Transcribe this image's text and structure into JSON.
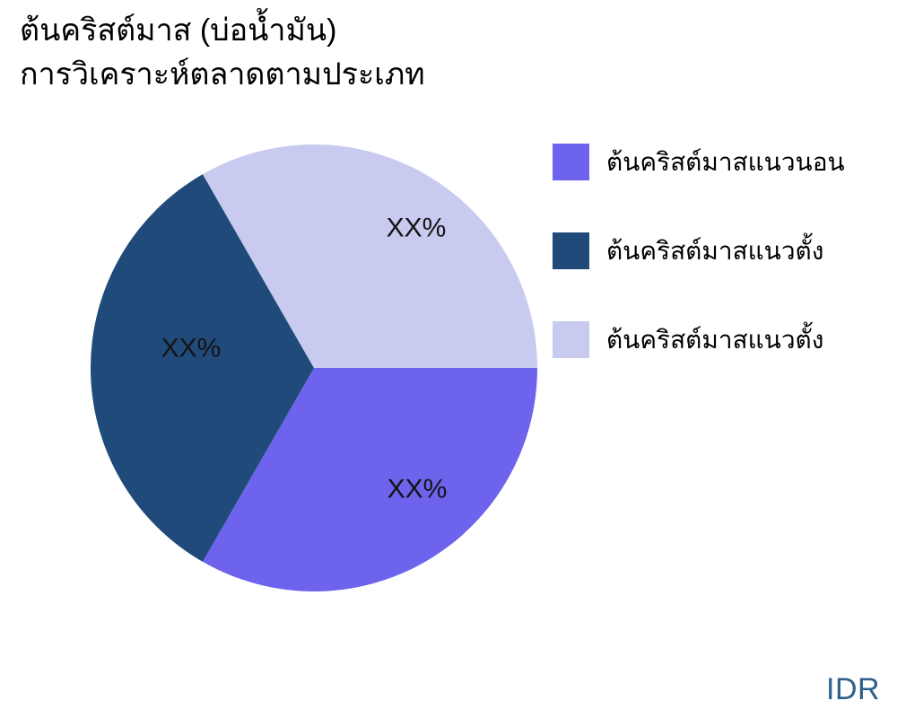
{
  "title": {
    "line1": "ต้นคริสต์มาส (บ่อน้ำมัน)",
    "line2": "การวิเคราะห์ตลาดตามประเภท"
  },
  "watermark": "IDR",
  "colors": {
    "background": "#FFFFFF",
    "title_text": "#000000",
    "label_text": "#141414",
    "watermark_text": "#2F5F8C"
  },
  "chart_data": {
    "type": "pie",
    "title": "ต้นคริสต์มาส (บ่อน้ำมัน) การวิเคราะห์ตลาดตามประเภท",
    "legend_position": "right",
    "start_angle_deg": 0,
    "direction": "clockwise",
    "slices": [
      {
        "label": "ต้นคริสต์มาสแนวนอน",
        "value": 33.3,
        "displayed_value": "XX%",
        "color": "#6E63EC"
      },
      {
        "label": "ต้นคริสต์มาสแนวตั้ง",
        "value": 33.4,
        "displayed_value": "XX%",
        "color": "#1F4A7A"
      },
      {
        "label": "ต้นคริสต์มาสแนวตั้ง",
        "value": 33.3,
        "displayed_value": "XX%",
        "color": "#C8CAF0"
      }
    ]
  }
}
